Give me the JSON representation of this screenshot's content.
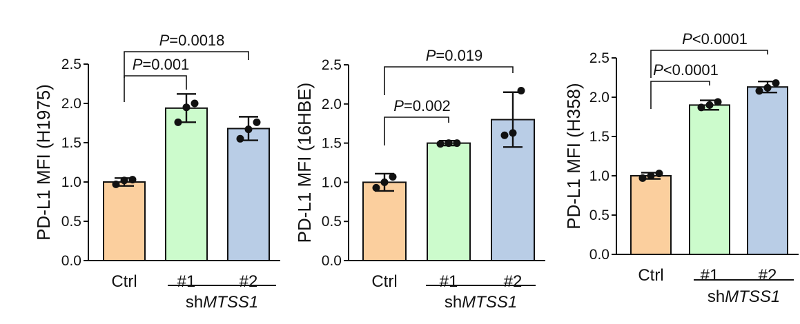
{
  "chart_data": [
    {
      "type": "bar",
      "ylabel": "PD-L1 MFI (H1975)",
      "ylim": [
        0,
        2.5
      ],
      "yticks": [
        "0.0",
        "0.5",
        "1.0",
        "1.5",
        "2.0",
        "2.5"
      ],
      "categories": [
        "Ctrl",
        "#1",
        "#2"
      ],
      "group_label": {
        "prefix": "sh",
        "gene": "MTSS1"
      },
      "values": [
        1.0,
        1.94,
        1.68
      ],
      "errors": [
        0.05,
        0.18,
        0.15
      ],
      "points": [
        [
          0.97,
          1.02,
          1.03
        ],
        [
          1.76,
          1.95,
          2.0
        ],
        [
          1.55,
          1.67,
          1.76
        ]
      ],
      "colors": [
        "#fbcf9e",
        "#ccfbcc",
        "#b9cde6"
      ],
      "comparisons": [
        {
          "from": 0,
          "to": 1,
          "label": "=0.001"
        },
        {
          "from": 0,
          "to": 2,
          "label": "=0.0018"
        }
      ]
    },
    {
      "type": "bar",
      "ylabel": "PD-L1 MFI (16HBE)",
      "ylim": [
        0,
        2.5
      ],
      "yticks": [
        "0.0",
        "0.5",
        "1.0",
        "1.5",
        "2.0",
        "2.5"
      ],
      "categories": [
        "Ctrl",
        "#1",
        "#2"
      ],
      "group_label": {
        "prefix": "sh",
        "gene": "MTSS1"
      },
      "values": [
        1.0,
        1.5,
        1.8
      ],
      "errors": [
        0.11,
        0.03,
        0.35
      ],
      "points": [
        [
          0.93,
          1.0,
          1.07
        ],
        [
          1.49,
          1.5,
          1.5
        ],
        [
          1.6,
          1.63,
          2.17
        ]
      ],
      "colors": [
        "#fbcf9e",
        "#ccfbcc",
        "#b9cde6"
      ],
      "comparisons": [
        {
          "from": 0,
          "to": 1,
          "label": "=0.002"
        },
        {
          "from": 0,
          "to": 2,
          "label": "=0.019"
        }
      ]
    },
    {
      "type": "bar",
      "ylabel": "PD-L1 MFI (H358)",
      "ylim": [
        0,
        2.5
      ],
      "yticks": [
        "0.0",
        "0.5",
        "1.0",
        "1.5",
        "2.0",
        "2.5"
      ],
      "categories": [
        "Ctrl",
        "#1",
        "#2"
      ],
      "group_label": {
        "prefix": "sh",
        "gene": "MTSS1"
      },
      "values": [
        1.0,
        1.9,
        2.13
      ],
      "errors": [
        0.04,
        0.06,
        0.07
      ],
      "points": [
        [
          0.97,
          1.0,
          1.03
        ],
        [
          1.87,
          1.9,
          1.94
        ],
        [
          2.08,
          2.12,
          2.18
        ]
      ],
      "colors": [
        "#fbcf9e",
        "#ccfbcc",
        "#b9cde6"
      ],
      "comparisons": [
        {
          "from": 0,
          "to": 1,
          "label": "<0.0001"
        },
        {
          "from": 0,
          "to": 2,
          "label": "<0.0001"
        }
      ]
    }
  ],
  "sig_prefix": "P"
}
